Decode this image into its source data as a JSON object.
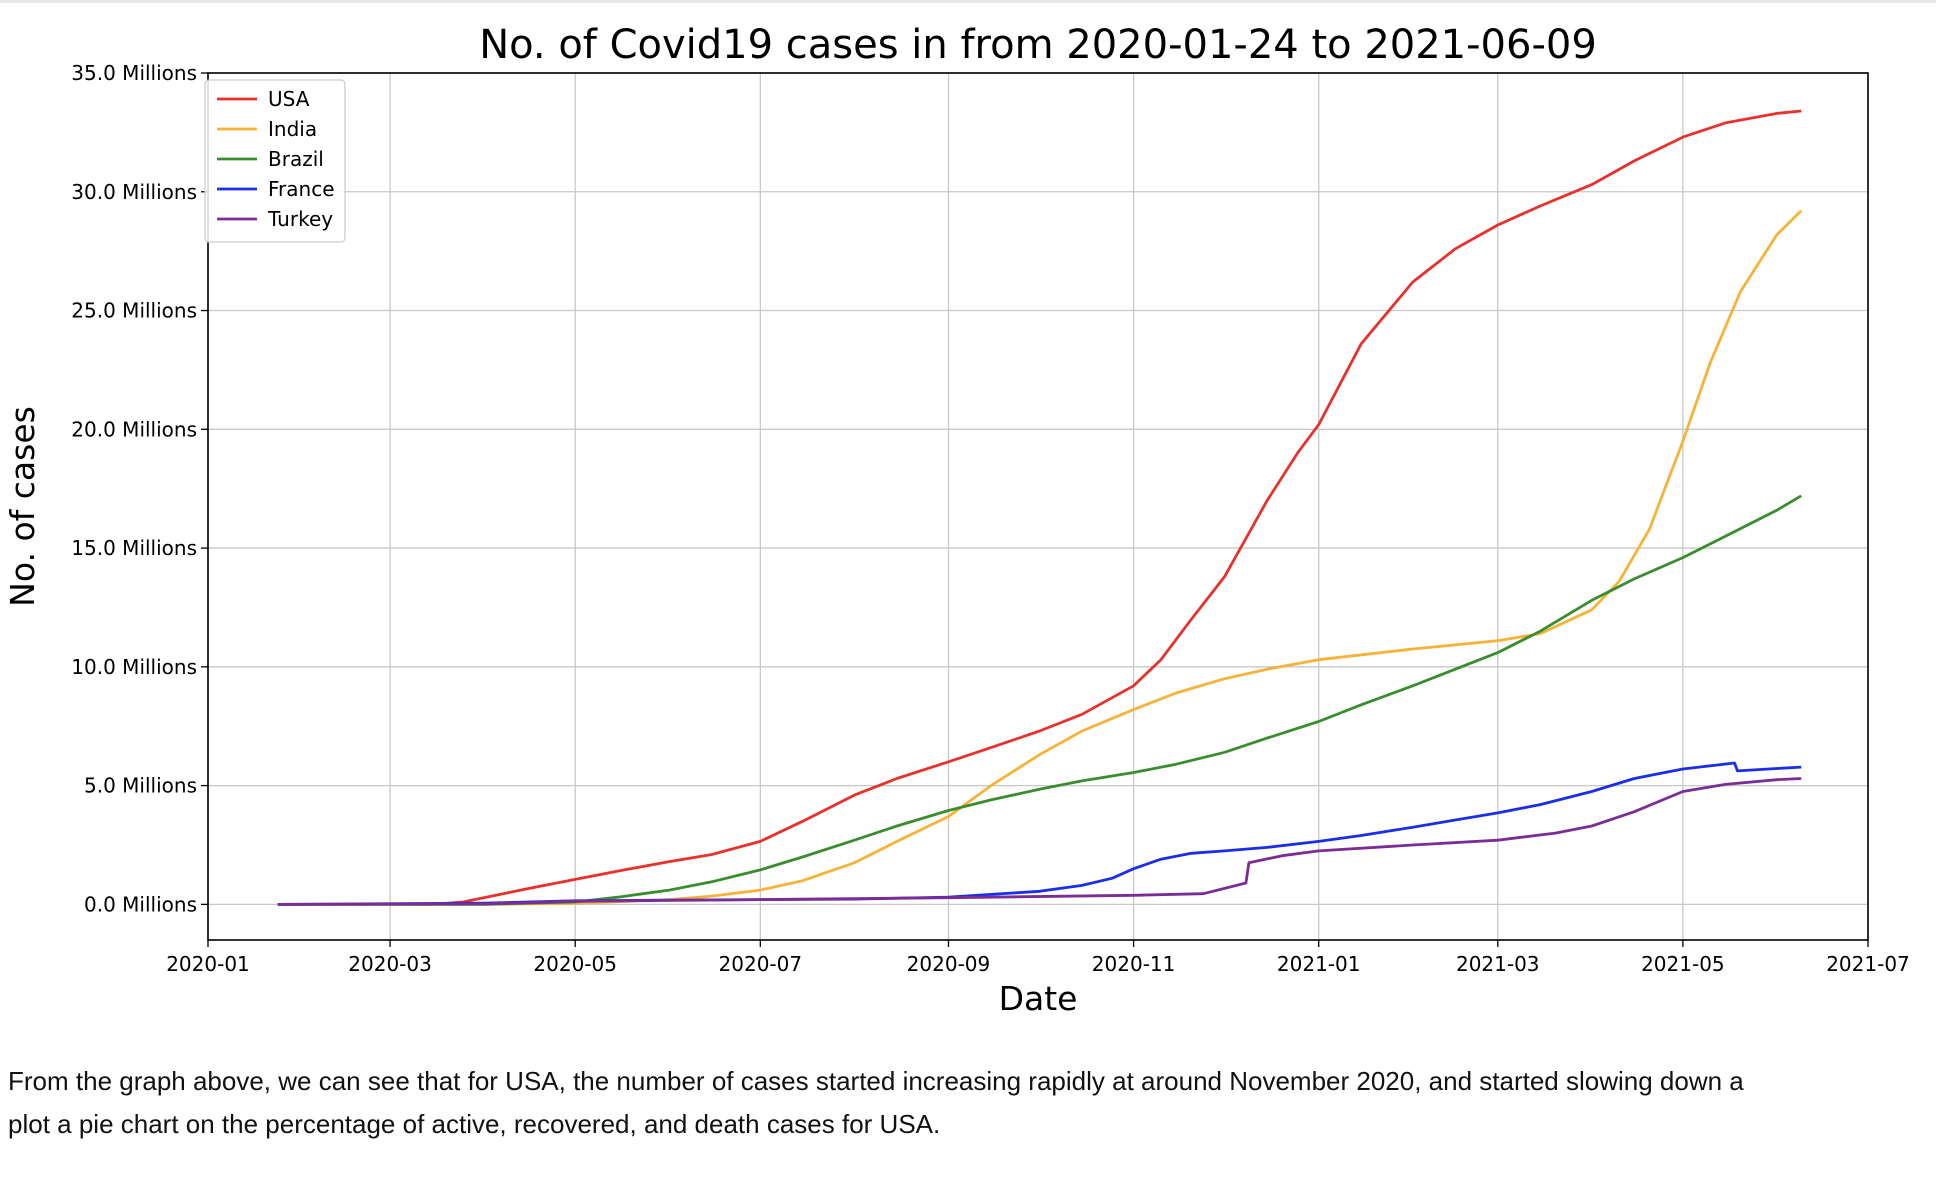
{
  "chart_data": {
    "type": "line",
    "title": "No. of Covid19 cases in from 2020-01-24 to 2021-06-09",
    "xlabel": "Date",
    "ylabel": "No. of cases",
    "xlim": [
      "2020-01-01",
      "2021-07-01"
    ],
    "ylim": [
      -1.5,
      35.0
    ],
    "x_ticks": [
      "2020-01",
      "2020-03",
      "2020-05",
      "2020-07",
      "2020-09",
      "2020-11",
      "2021-01",
      "2021-03",
      "2021-05",
      "2021-07"
    ],
    "y_ticks": [
      "0.0 Millions",
      "5.0 Millions",
      "10.0 Millions",
      "15.0 Millions",
      "20.0 Millions",
      "25.0 Millions",
      "30.0 Millions",
      "35.0 Millions"
    ],
    "y_unit": "Millions",
    "grid": true,
    "legend_position": "top-left",
    "series": [
      {
        "name": "USA",
        "color": "#e8312c",
        "points": [
          [
            "2020-01-24",
            0
          ],
          [
            "2020-03-15",
            0
          ],
          [
            "2020-03-25",
            0.1
          ],
          [
            "2020-04-15",
            0.65
          ],
          [
            "2020-05-01",
            1.05
          ],
          [
            "2020-05-15",
            1.4
          ],
          [
            "2020-06-01",
            1.8
          ],
          [
            "2020-06-15",
            2.1
          ],
          [
            "2020-07-01",
            2.65
          ],
          [
            "2020-07-15",
            3.5
          ],
          [
            "2020-08-01",
            4.6
          ],
          [
            "2020-08-15",
            5.3
          ],
          [
            "2020-09-01",
            6.0
          ],
          [
            "2020-09-15",
            6.6
          ],
          [
            "2020-10-01",
            7.3
          ],
          [
            "2020-10-15",
            8.0
          ],
          [
            "2020-11-01",
            9.2
          ],
          [
            "2020-11-10",
            10.3
          ],
          [
            "2020-11-20",
            12.0
          ],
          [
            "2020-12-01",
            13.8
          ],
          [
            "2020-12-15",
            17.0
          ],
          [
            "2020-12-25",
            19.0
          ],
          [
            "2021-01-01",
            20.2
          ],
          [
            "2021-01-15",
            23.6
          ],
          [
            "2021-02-01",
            26.2
          ],
          [
            "2021-02-15",
            27.6
          ],
          [
            "2021-03-01",
            28.6
          ],
          [
            "2021-03-15",
            29.4
          ],
          [
            "2021-04-01",
            30.3
          ],
          [
            "2021-04-15",
            31.3
          ],
          [
            "2021-05-01",
            32.3
          ],
          [
            "2021-05-15",
            32.9
          ],
          [
            "2021-06-01",
            33.3
          ],
          [
            "2021-06-09",
            33.4
          ]
        ]
      },
      {
        "name": "India",
        "color": "#f7b239",
        "points": [
          [
            "2020-01-24",
            0
          ],
          [
            "2020-04-01",
            0
          ],
          [
            "2020-05-01",
            0.04
          ],
          [
            "2020-06-01",
            0.2
          ],
          [
            "2020-06-15",
            0.35
          ],
          [
            "2020-07-01",
            0.6
          ],
          [
            "2020-07-15",
            1.0
          ],
          [
            "2020-08-01",
            1.75
          ],
          [
            "2020-08-15",
            2.65
          ],
          [
            "2020-09-01",
            3.7
          ],
          [
            "2020-09-15",
            5.0
          ],
          [
            "2020-10-01",
            6.3
          ],
          [
            "2020-10-15",
            7.3
          ],
          [
            "2020-11-01",
            8.2
          ],
          [
            "2020-11-15",
            8.9
          ],
          [
            "2020-12-01",
            9.5
          ],
          [
            "2020-12-15",
            9.9
          ],
          [
            "2021-01-01",
            10.3
          ],
          [
            "2021-02-01",
            10.75
          ],
          [
            "2021-03-01",
            11.1
          ],
          [
            "2021-03-15",
            11.4
          ],
          [
            "2021-04-01",
            12.4
          ],
          [
            "2021-04-10",
            13.6
          ],
          [
            "2021-04-20",
            15.8
          ],
          [
            "2021-05-01",
            19.5
          ],
          [
            "2021-05-10",
            22.8
          ],
          [
            "2021-05-20",
            25.8
          ],
          [
            "2021-06-01",
            28.2
          ],
          [
            "2021-06-09",
            29.2
          ]
        ]
      },
      {
        "name": "Brazil",
        "color": "#3a8d2e",
        "points": [
          [
            "2020-01-24",
            0
          ],
          [
            "2020-04-01",
            0
          ],
          [
            "2020-05-01",
            0.1
          ],
          [
            "2020-05-15",
            0.3
          ],
          [
            "2020-06-01",
            0.6
          ],
          [
            "2020-06-15",
            0.95
          ],
          [
            "2020-07-01",
            1.45
          ],
          [
            "2020-07-15",
            2.0
          ],
          [
            "2020-08-01",
            2.7
          ],
          [
            "2020-08-15",
            3.3
          ],
          [
            "2020-09-01",
            3.95
          ],
          [
            "2020-09-15",
            4.4
          ],
          [
            "2020-10-01",
            4.85
          ],
          [
            "2020-10-15",
            5.2
          ],
          [
            "2020-11-01",
            5.55
          ],
          [
            "2020-11-15",
            5.9
          ],
          [
            "2020-12-01",
            6.4
          ],
          [
            "2020-12-15",
            7.0
          ],
          [
            "2021-01-01",
            7.7
          ],
          [
            "2021-01-15",
            8.4
          ],
          [
            "2021-02-01",
            9.2
          ],
          [
            "2021-02-15",
            9.9
          ],
          [
            "2021-03-01",
            10.6
          ],
          [
            "2021-03-15",
            11.5
          ],
          [
            "2021-04-01",
            12.8
          ],
          [
            "2021-04-15",
            13.7
          ],
          [
            "2021-05-01",
            14.6
          ],
          [
            "2021-05-15",
            15.5
          ],
          [
            "2021-06-01",
            16.6
          ],
          [
            "2021-06-09",
            17.2
          ]
        ]
      },
      {
        "name": "France",
        "color": "#1a2ee8",
        "points": [
          [
            "2020-01-24",
            0
          ],
          [
            "2020-04-01",
            0.05
          ],
          [
            "2020-05-01",
            0.15
          ],
          [
            "2020-06-01",
            0.18
          ],
          [
            "2020-07-01",
            0.2
          ],
          [
            "2020-08-01",
            0.22
          ],
          [
            "2020-09-01",
            0.3
          ],
          [
            "2020-09-15",
            0.42
          ],
          [
            "2020-10-01",
            0.55
          ],
          [
            "2020-10-15",
            0.8
          ],
          [
            "2020-10-25",
            1.1
          ],
          [
            "2020-11-01",
            1.5
          ],
          [
            "2020-11-10",
            1.9
          ],
          [
            "2020-11-20",
            2.15
          ],
          [
            "2020-12-01",
            2.25
          ],
          [
            "2020-12-15",
            2.4
          ],
          [
            "2021-01-01",
            2.65
          ],
          [
            "2021-01-15",
            2.9
          ],
          [
            "2021-02-01",
            3.25
          ],
          [
            "2021-02-15",
            3.55
          ],
          [
            "2021-03-01",
            3.85
          ],
          [
            "2021-03-15",
            4.2
          ],
          [
            "2021-04-01",
            4.75
          ],
          [
            "2021-04-15",
            5.3
          ],
          [
            "2021-05-01",
            5.7
          ],
          [
            "2021-05-18",
            5.95
          ],
          [
            "2021-05-19",
            5.62
          ],
          [
            "2021-06-01",
            5.72
          ],
          [
            "2021-06-09",
            5.78
          ]
        ]
      },
      {
        "name": "Turkey",
        "color": "#7b2d95",
        "points": [
          [
            "2020-01-24",
            0
          ],
          [
            "2020-04-01",
            0.02
          ],
          [
            "2020-05-01",
            0.13
          ],
          [
            "2020-07-01",
            0.2
          ],
          [
            "2020-09-01",
            0.28
          ],
          [
            "2020-11-01",
            0.38
          ],
          [
            "2020-11-24",
            0.45
          ],
          [
            "2020-12-08",
            0.9
          ],
          [
            "2020-12-09",
            1.75
          ],
          [
            "2020-12-20",
            2.05
          ],
          [
            "2021-01-01",
            2.25
          ],
          [
            "2021-02-01",
            2.5
          ],
          [
            "2021-03-01",
            2.7
          ],
          [
            "2021-03-20",
            3.0
          ],
          [
            "2021-04-01",
            3.3
          ],
          [
            "2021-04-15",
            3.9
          ],
          [
            "2021-05-01",
            4.75
          ],
          [
            "2021-05-15",
            5.05
          ],
          [
            "2021-06-01",
            5.25
          ],
          [
            "2021-06-09",
            5.3
          ]
        ]
      }
    ]
  },
  "caption": {
    "line1": "From the graph above, we can see that for USA, the number of cases started increasing rapidly at around November 2020, and started slowing down a",
    "line2": "plot a pie chart on the percentage of active, recovered, and death cases for USA."
  }
}
